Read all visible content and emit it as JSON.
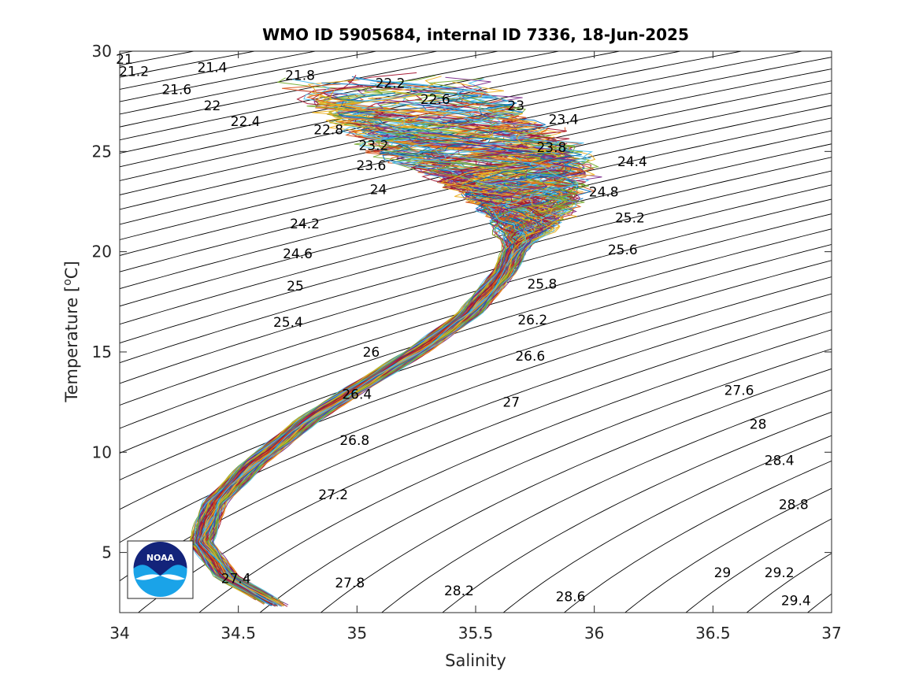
{
  "chart_data": {
    "type": "line",
    "title": "WMO ID 5905684, internal ID 7336, 18-Jun-2025",
    "xlabel": "Salinity",
    "ylabel": "Temperature [oC]",
    "ylabel_parts": {
      "pre": "Temperature [",
      "sup": "o",
      "post": "C]"
    },
    "xlim": [
      34,
      37
    ],
    "ylim": [
      2,
      30
    ],
    "xticks": [
      34,
      34.5,
      35,
      35.5,
      36,
      36.5,
      37
    ],
    "xtick_labels": [
      "34",
      "34.5",
      "35",
      "35.5",
      "36",
      "36.5",
      "37"
    ],
    "yticks": [
      5,
      10,
      15,
      20,
      25,
      30
    ],
    "ytick_labels": [
      "5",
      "10",
      "15",
      "20",
      "25",
      "30"
    ],
    "grid": false,
    "legend": "none",
    "isopycnal_sigma_range": [
      20.0,
      29.6
    ],
    "isopycnal_sigma_step": 0.2,
    "density_labels": [
      {
        "text": "21",
        "s": 34.02,
        "t": 29.6
      },
      {
        "text": "21.2",
        "s": 34.06,
        "t": 29.0
      },
      {
        "text": "21.4",
        "s": 34.39,
        "t": 29.2
      },
      {
        "text": "21.6",
        "s": 34.24,
        "t": 28.1
      },
      {
        "text": "21.8",
        "s": 34.76,
        "t": 28.8
      },
      {
        "text": "22",
        "s": 34.39,
        "t": 27.3
      },
      {
        "text": "22.2",
        "s": 35.14,
        "t": 28.4
      },
      {
        "text": "22.4",
        "s": 34.53,
        "t": 26.5
      },
      {
        "text": "22.6",
        "s": 35.33,
        "t": 27.6
      },
      {
        "text": "22.8",
        "s": 34.88,
        "t": 26.1
      },
      {
        "text": "23",
        "s": 35.67,
        "t": 27.3
      },
      {
        "text": "23.2",
        "s": 35.07,
        "t": 25.3
      },
      {
        "text": "23.4",
        "s": 35.87,
        "t": 26.6
      },
      {
        "text": "23.6",
        "s": 35.06,
        "t": 24.3
      },
      {
        "text": "23.8",
        "s": 35.82,
        "t": 25.2
      },
      {
        "text": "24",
        "s": 35.09,
        "t": 23.1
      },
      {
        "text": "24.2",
        "s": 34.78,
        "t": 21.4
      },
      {
        "text": "24.4",
        "s": 36.16,
        "t": 24.5
      },
      {
        "text": "24.6",
        "s": 34.75,
        "t": 19.9
      },
      {
        "text": "24.8",
        "s": 36.04,
        "t": 23.0
      },
      {
        "text": "25",
        "s": 34.74,
        "t": 18.3
      },
      {
        "text": "25.2",
        "s": 36.15,
        "t": 21.7
      },
      {
        "text": "25.4",
        "s": 34.71,
        "t": 16.5
      },
      {
        "text": "25.6",
        "s": 36.12,
        "t": 20.1
      },
      {
        "text": "25.8",
        "s": 35.78,
        "t": 18.4
      },
      {
        "text": "26",
        "s": 35.06,
        "t": 15.0
      },
      {
        "text": "26.2",
        "s": 35.74,
        "t": 16.6
      },
      {
        "text": "26.4",
        "s": 35.0,
        "t": 12.9
      },
      {
        "text": "26.6",
        "s": 35.73,
        "t": 14.8
      },
      {
        "text": "26.8",
        "s": 34.99,
        "t": 10.6
      },
      {
        "text": "27",
        "s": 35.65,
        "t": 12.5
      },
      {
        "text": "27.2",
        "s": 34.9,
        "t": 7.9
      },
      {
        "text": "27.4",
        "s": 34.49,
        "t": 3.7
      },
      {
        "text": "27.6",
        "s": 36.61,
        "t": 13.1
      },
      {
        "text": "27.8",
        "s": 34.97,
        "t": 3.5
      },
      {
        "text": "28",
        "s": 36.69,
        "t": 11.4
      },
      {
        "text": "28.2",
        "s": 35.43,
        "t": 3.1
      },
      {
        "text": "28.4",
        "s": 36.78,
        "t": 9.6
      },
      {
        "text": "28.6",
        "s": 35.9,
        "t": 2.8
      },
      {
        "text": "28.8",
        "s": 36.84,
        "t": 7.4
      },
      {
        "text": "29",
        "s": 36.54,
        "t": 4.0
      },
      {
        "text": "29.2",
        "s": 36.78,
        "t": 4.0
      },
      {
        "text": "29.4",
        "s": 36.85,
        "t": 2.6
      }
    ],
    "profiles": {
      "count": 160,
      "median_path": [
        {
          "s": 34.67,
          "t": 2.3
        },
        {
          "s": 34.45,
          "t": 3.8
        },
        {
          "s": 34.34,
          "t": 5.5
        },
        {
          "s": 34.4,
          "t": 7.5
        },
        {
          "s": 34.57,
          "t": 9.5
        },
        {
          "s": 34.78,
          "t": 11.5
        },
        {
          "s": 35.0,
          "t": 13.2
        },
        {
          "s": 35.25,
          "t": 15.0
        },
        {
          "s": 35.48,
          "t": 17.0
        },
        {
          "s": 35.62,
          "t": 19.0
        },
        {
          "s": 35.7,
          "t": 21.0
        },
        {
          "s": 35.72,
          "t": 22.5
        },
        {
          "s": 35.62,
          "t": 24.0
        },
        {
          "s": 35.45,
          "t": 25.5
        },
        {
          "s": 35.28,
          "t": 27.0
        },
        {
          "s": 35.1,
          "t": 28.5
        }
      ]
    },
    "colors": [
      "#0072BD",
      "#D95319",
      "#EDB120",
      "#7E2F8E",
      "#77AC30",
      "#4DBEEE",
      "#A2142F"
    ]
  },
  "logo": {
    "text": "NOAA"
  }
}
